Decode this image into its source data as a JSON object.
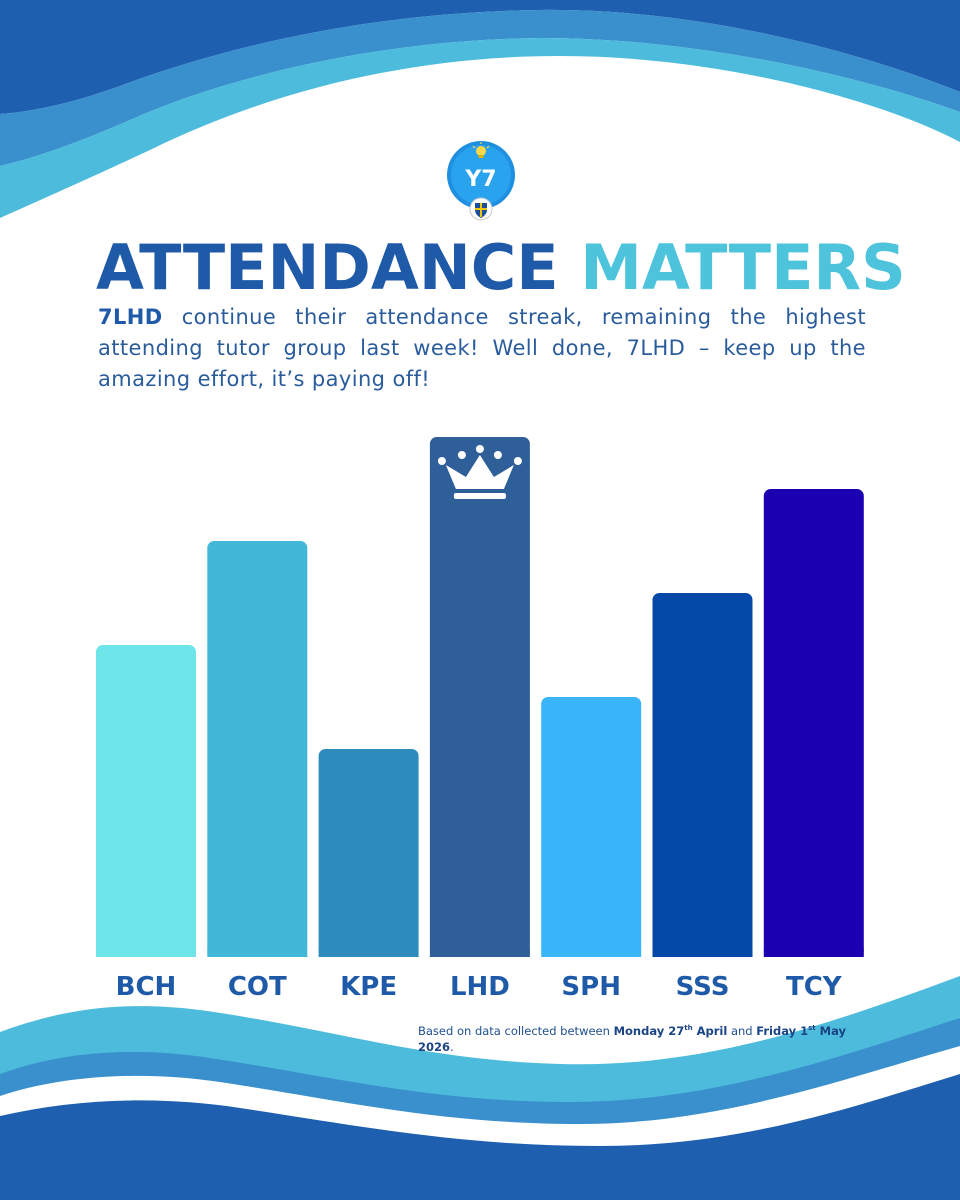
{
  "header": {
    "logo_badge_text": "Y7",
    "title_part1": "ATTENDANCE",
    "title_part2": "MATTERS"
  },
  "intro": {
    "lead": "7LHD",
    "text": " continue their attendance streak, remaining the highest attending tutor group last week! Well done, 7LHD – keep up the amazing effort, it’s paying off!"
  },
  "chart_data": {
    "type": "bar",
    "title": "",
    "xlabel": "",
    "ylabel": "",
    "categories": [
      "BCH",
      "COT",
      "KPE",
      "LHD",
      "SPH",
      "SSS",
      "TCY"
    ],
    "values": [
      3,
      4,
      2,
      5,
      2.5,
      3.5,
      4.5
    ],
    "ylim": [
      0,
      5
    ],
    "grid": false,
    "legend": "none",
    "highlight_category": "LHD",
    "highlight_icon": "crown-icon",
    "colors": [
      "#6de5e9",
      "#42b8d8",
      "#2e8bbd",
      "#2f5f98",
      "#3ab5f9",
      "#0449a8",
      "#1a00b0"
    ]
  },
  "footnote": {
    "prefix": "Based on data collected between ",
    "start_day": "Monday 27",
    "start_sup": "th",
    "start_month": " April",
    "middle": " and ",
    "end_day": "Friday 1",
    "end_sup": "st",
    "end_rest": " May 2026",
    "suffix": "."
  },
  "theme": {
    "primary": "#1f5aa8",
    "accent": "#4ec3dc",
    "wave_dark": "#1e5fb0",
    "wave_mid": "#3a8fcd",
    "wave_light": "#4dbcdc"
  }
}
